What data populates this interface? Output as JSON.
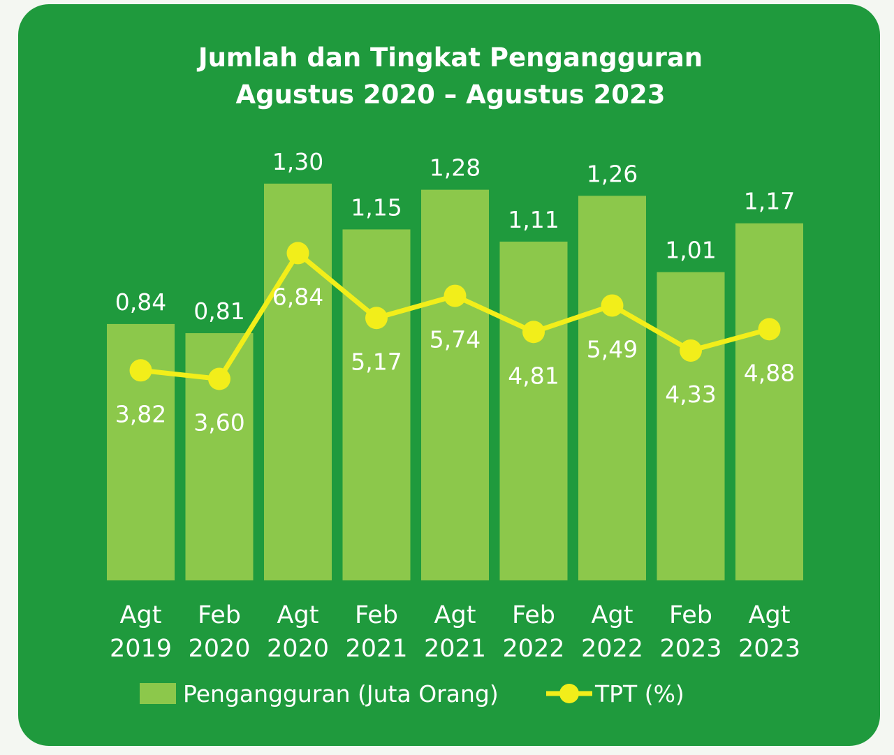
{
  "chart_data": {
    "type": "bar",
    "title": "Jumlah dan Tingkat Pengangguran",
    "subtitle": "Agustus 2020 – Agustus 2023",
    "categories": [
      [
        "Agt",
        "2019"
      ],
      [
        "Feb",
        "2020"
      ],
      [
        "Agt",
        "2020"
      ],
      [
        "Feb",
        "2021"
      ],
      [
        "Agt",
        "2021"
      ],
      [
        "Feb",
        "2022"
      ],
      [
        "Agt",
        "2022"
      ],
      [
        "Feb",
        "2023"
      ],
      [
        "Agt",
        "2023"
      ]
    ],
    "series": [
      {
        "name": "Pengangguran (Juta Orang)",
        "type": "bar",
        "values": [
          0.84,
          0.81,
          1.3,
          1.15,
          1.28,
          1.11,
          1.26,
          1.01,
          1.17
        ],
        "labels": [
          "0,84",
          "0,81",
          "1,30",
          "1,15",
          "1,28",
          "1,11",
          "1,26",
          "1,01",
          "1,17"
        ],
        "color": "#8cc84b"
      },
      {
        "name": "TPT (%)",
        "type": "line",
        "values": [
          3.82,
          3.6,
          6.84,
          5.17,
          5.74,
          4.81,
          5.49,
          4.33,
          4.88
        ],
        "labels": [
          "3,82",
          "3,60",
          "6,84",
          "5,17",
          "5,74",
          "4,81",
          "5,49",
          "4,33",
          "4,88"
        ],
        "color": "#f2ee1a"
      }
    ],
    "legend_position": "bottom",
    "grid": false
  }
}
